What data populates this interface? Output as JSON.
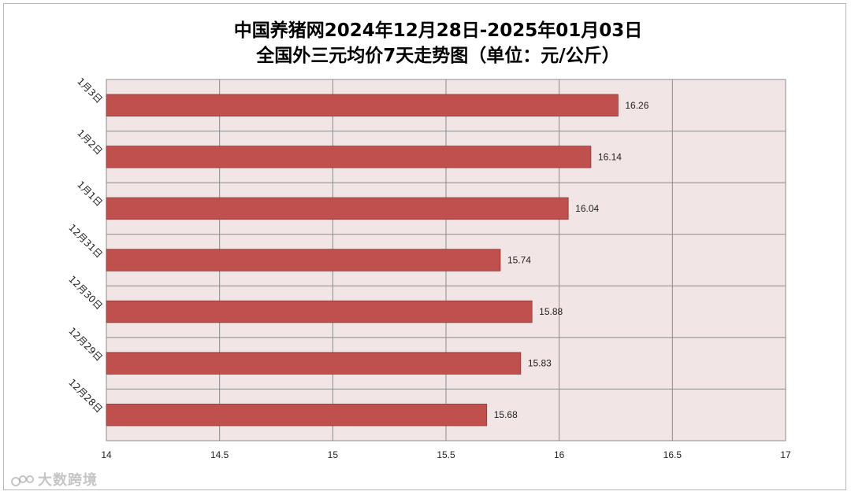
{
  "chart_data": {
    "type": "bar",
    "orientation": "horizontal",
    "title": [
      "中国养猪网2024年12月28日-2025年01月03日",
      "全国外三元均价7天走势图（单位：元/公斤）"
    ],
    "categories": [
      "1月3日",
      "1月2日",
      "1月1日",
      "12月31日",
      "12月30日",
      "12月29日",
      "12月28日"
    ],
    "values": [
      16.26,
      16.14,
      16.04,
      15.74,
      15.88,
      15.83,
      15.68
    ],
    "value_labels": [
      "16.26",
      "16.14",
      "16.04",
      "15.74",
      "15.88",
      "15.83",
      "15.68"
    ],
    "xlim": [
      14,
      17
    ],
    "x_ticks": [
      14,
      14.5,
      15,
      15.5,
      16,
      16.5,
      17
    ],
    "x_tick_labels": [
      "14",
      "14.5",
      "15",
      "15.5",
      "16",
      "16.5",
      "17"
    ],
    "grid": true,
    "legend": "none",
    "bar_color": "#c0504d",
    "plot_background": "#f2e5e5"
  },
  "watermark": {
    "text": "大数跨境",
    "icon": "dashuju-logo-icon"
  }
}
